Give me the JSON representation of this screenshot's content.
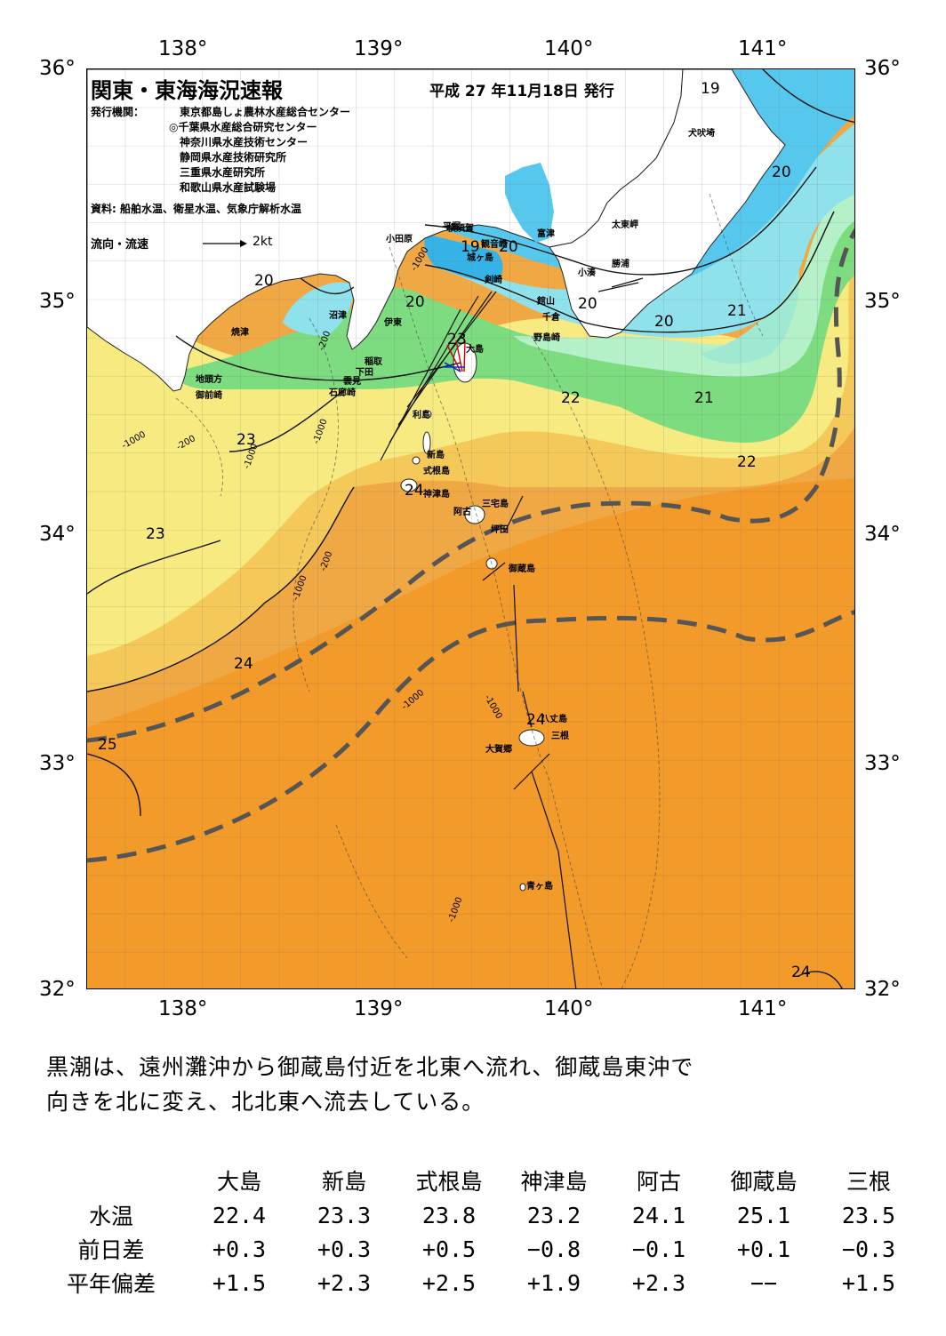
{
  "map": {
    "title": "関東・東海海況速報",
    "issue_date": "平成 27 年11月18日 発行",
    "publisher_label": "発行機関：",
    "publishers": [
      "東京都島しょ農林水産総合センター",
      "◎千葉県水産総合研究センター",
      "神奈川県水産技術センター",
      "静岡県水産技術研究所",
      "三重県水産研究所",
      "和歌山県水産試験場"
    ],
    "sources": "資料: 船舶水温、衛星水温、気象庁解析水温",
    "current_legend_label": "流向・流速",
    "current_legend_scale": "2kt",
    "lon_labels": [
      "138°",
      "139°",
      "140°",
      "141°"
    ],
    "lat_labels": [
      "36°",
      "35°",
      "34°",
      "33°",
      "32°"
    ],
    "place_names": [
      "犬吠埼",
      "太東岬",
      "勝浦",
      "小湊",
      "富津",
      "館山",
      "千倉",
      "野島崎",
      "観音崎",
      "横須賀",
      "剣崎",
      "城ヶ島",
      "平塚",
      "小田原",
      "大島",
      "伊東",
      "沼津",
      "焼津",
      "稲取",
      "下田",
      "雲見",
      "石廊崎",
      "地頭方",
      "御前崎",
      "利島",
      "新島",
      "式根島",
      "神津島",
      "三宅島",
      "阿古",
      "坪田",
      "御蔵島",
      "八丈島",
      "三根",
      "大賀郷",
      "青ヶ島"
    ],
    "isotherm_labels": [
      "19",
      "20",
      "20",
      "20",
      "20",
      "20",
      "20",
      "21",
      "21",
      "22",
      "22",
      "23",
      "23",
      "23",
      "24",
      "24",
      "24",
      "24",
      "25",
      "19"
    ],
    "depth_labels": [
      "-200",
      "-200",
      "-200",
      "-1000",
      "-1000",
      "-1000",
      "-1000",
      "-1000",
      "-1000",
      "-1000",
      "-1000"
    ],
    "colors": {
      "land": "#ffffff",
      "t19": "#1f9ee0",
      "t20": "#56c8ee",
      "t21": "#8fe2ec",
      "t22": "#b4f0c8",
      "t22b": "#7ddc80",
      "t23": "#f7ea80",
      "t23b": "#f4c95a",
      "t24": "#f0a844",
      "t25": "#f09a2c",
      "kuroshio_axis": "#555555"
    }
  },
  "summary_lines": [
    "黒潮は、遠州灘沖から御蔵島付近を北東へ流れ、御蔵島東沖で",
    "向きを北に変え、北北東へ流去している。"
  ],
  "table": {
    "columns": [
      "大島",
      "新島",
      "式根島",
      "神津島",
      "阿古",
      "御蔵島",
      "三根"
    ],
    "rows": [
      {
        "label": "水温",
        "values": [
          "22.4",
          "23.3",
          "23.8",
          "23.2",
          "24.1",
          "25.1",
          "23.5"
        ]
      },
      {
        "label": "前日差",
        "values": [
          "+0.3",
          "+0.3",
          "+0.5",
          "−0.8",
          "−0.1",
          "+0.1",
          "−0.3"
        ]
      },
      {
        "label": "平年偏差",
        "values": [
          "+1.5",
          "+2.3",
          "+2.5",
          "+1.9",
          "+2.3",
          "−−",
          "+1.5"
        ]
      }
    ]
  }
}
